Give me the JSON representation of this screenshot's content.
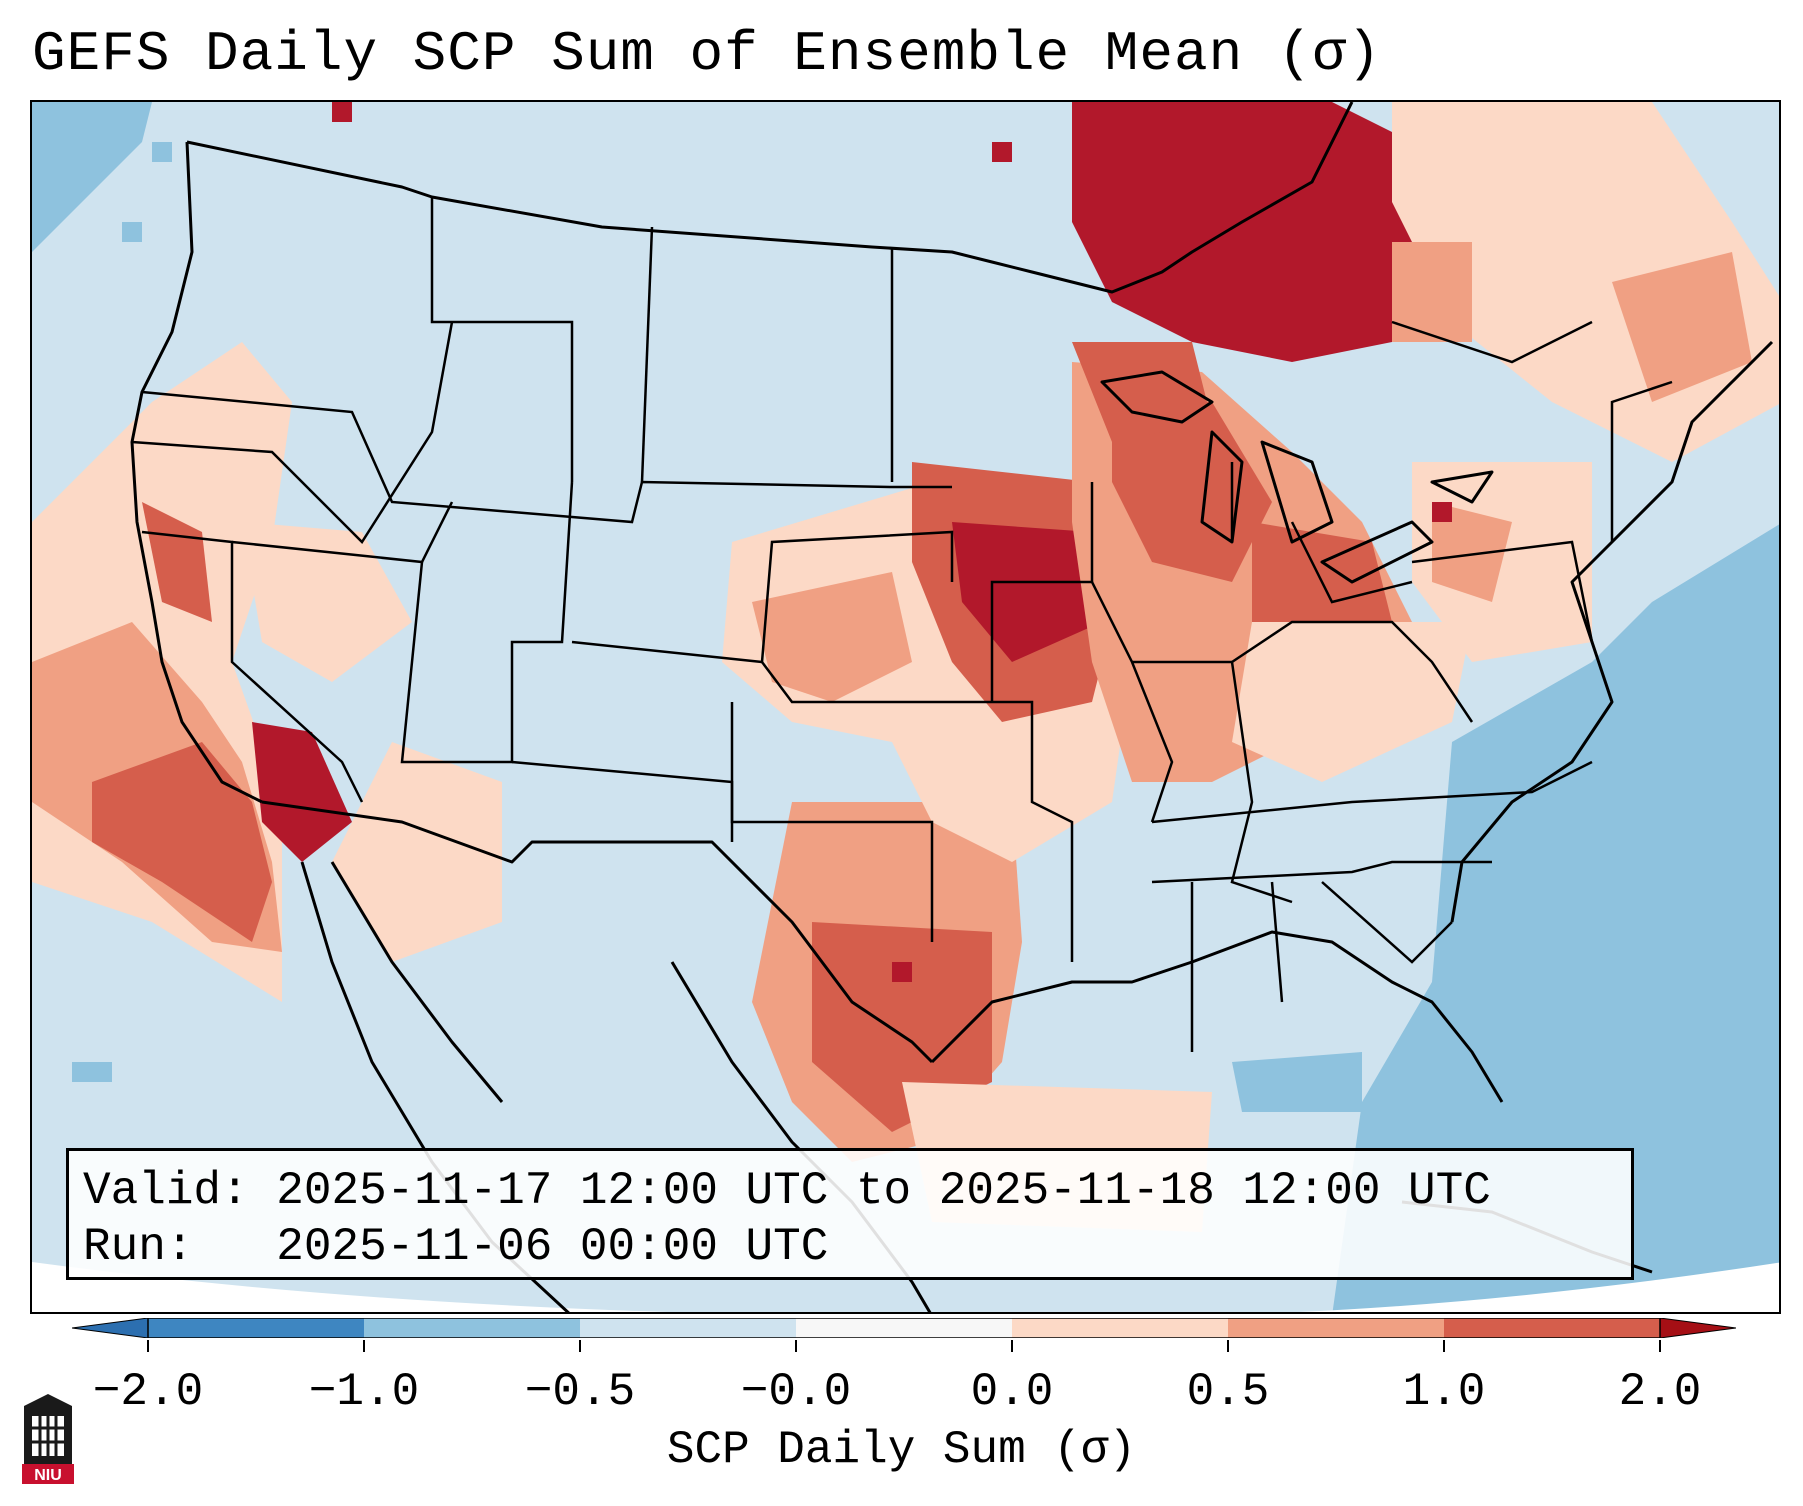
{
  "title": "GEFS Daily SCP Sum of Ensemble Mean (σ)",
  "info": {
    "valid_label": "Valid:",
    "valid_text": "2025-11-17 12:00 UTC to 2025-11-18 12:00 UTC",
    "run_label": "Run:",
    "run_text": "2025-11-06 00:00 UTC"
  },
  "colorbar": {
    "label": "SCP Daily Sum (σ)",
    "ticks": [
      "−2.0",
      "−1.0",
      "−0.5",
      "−0.0",
      "0.0",
      "0.5",
      "1.0",
      "2.0"
    ],
    "colors": [
      "#3e86c1",
      "#8ec2de",
      "#cfe3ef",
      "#f7f7f7",
      "#fcd9c6",
      "#f0a083",
      "#d55e4c",
      "#b2182b"
    ]
  },
  "legend_classes": {
    "light_blue": "#cfe3ef",
    "blue": "#8ec2de",
    "peach": "#fcd9c6",
    "salmon": "#f0a083",
    "red": "#d55e4c",
    "dark_red": "#b2182b"
  },
  "logo": {
    "text": "NIU",
    "icon": "niu-logo-icon"
  }
}
